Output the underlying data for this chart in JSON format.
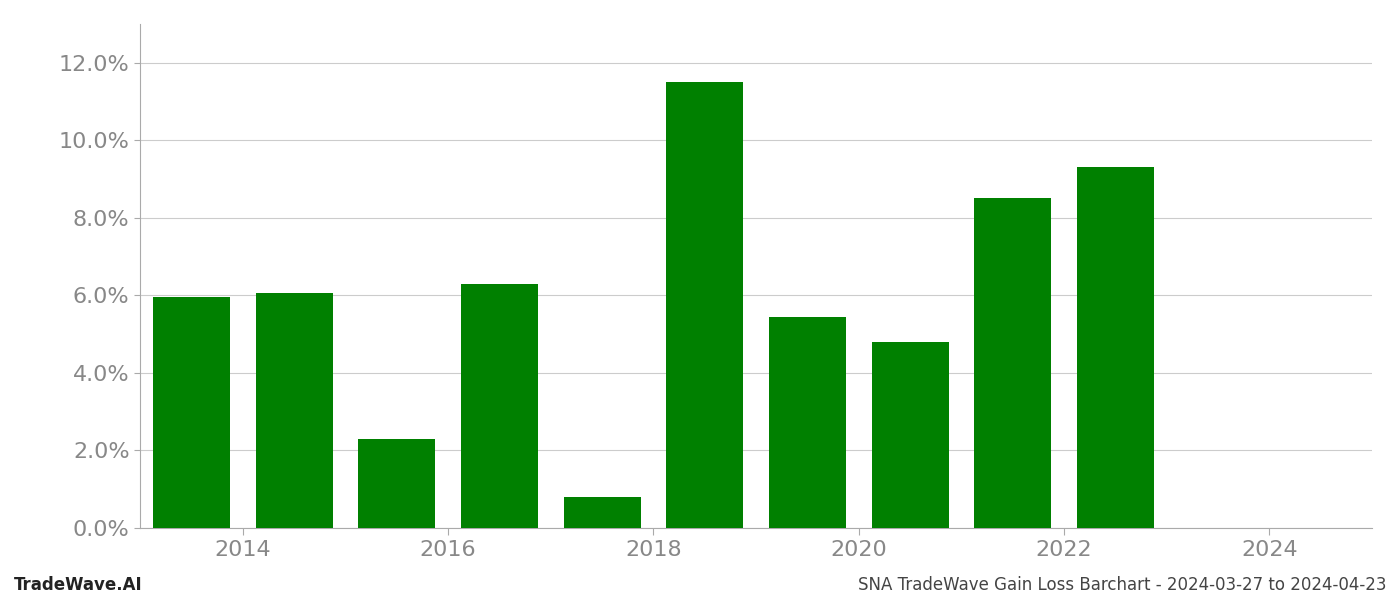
{
  "years": [
    2013,
    2014,
    2015,
    2016,
    2017,
    2018,
    2019,
    2020,
    2021,
    2022
  ],
  "values": [
    0.0595,
    0.0605,
    0.023,
    0.063,
    0.008,
    0.115,
    0.0545,
    0.048,
    0.085,
    0.093
  ],
  "bar_color": "#008000",
  "ylim": [
    0,
    0.13
  ],
  "yticks": [
    0.0,
    0.02,
    0.04,
    0.06,
    0.08,
    0.1,
    0.12
  ],
  "xlabel": "",
  "ylabel": "",
  "title": "",
  "footer_left": "TradeWave.AI",
  "footer_right": "SNA TradeWave Gain Loss Barchart - 2024-03-27 to 2024-04-23",
  "background_color": "#ffffff",
  "grid_color": "#cccccc",
  "bar_width": 0.75,
  "footer_fontsize": 12,
  "tick_fontsize": 16,
  "xtick_positions": [
    2013.5,
    2015.5,
    2017.5,
    2019.5,
    2021.5,
    2023.5
  ],
  "xtick_labels": [
    "2014",
    "2016",
    "2018",
    "2020",
    "2022",
    "2024"
  ]
}
